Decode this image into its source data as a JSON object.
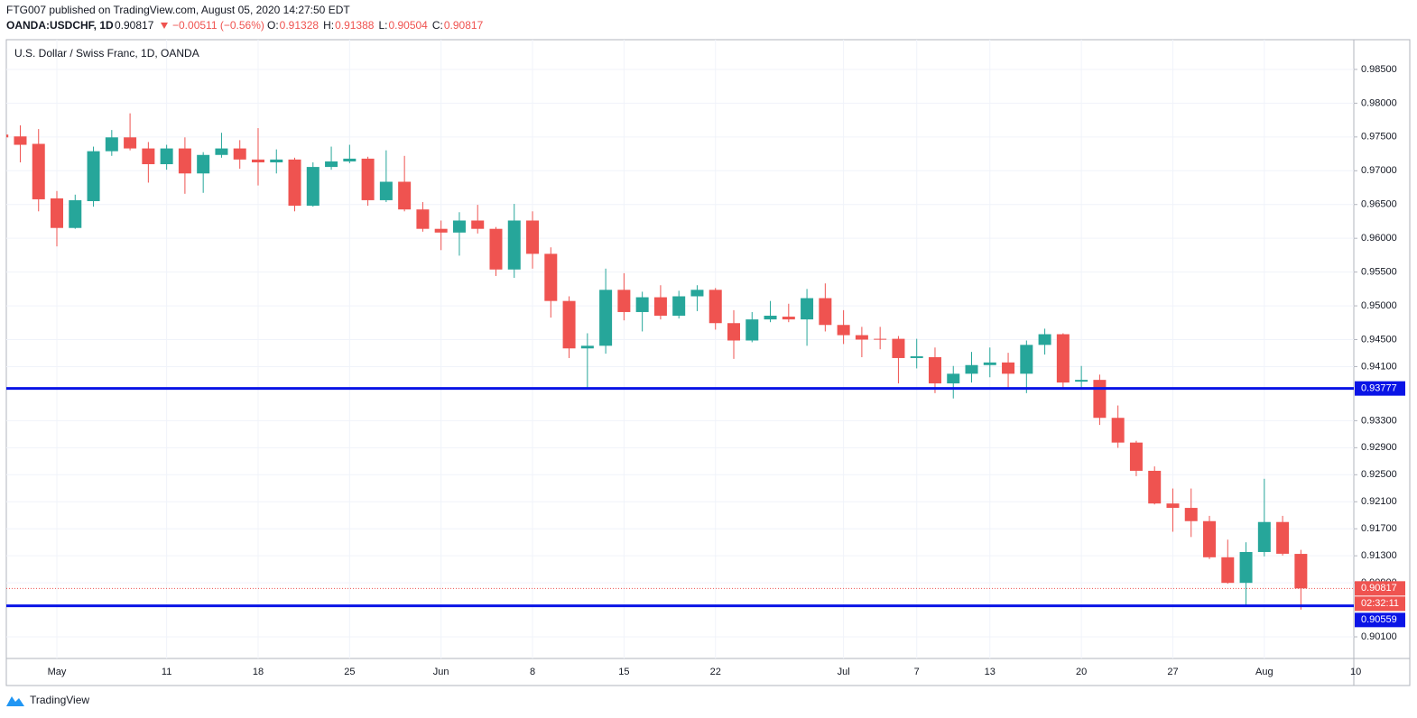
{
  "header": {
    "publisher": "FTG007 published on TradingView.com, August 05, 2020 14:27:50 EDT",
    "symbol": "OANDA:USDCHF, 1D",
    "last": "0.90817",
    "change": "−0.00511 (−0.56%)",
    "ohlc": [
      {
        "label": "O:",
        "value": "0.91328"
      },
      {
        "label": "H:",
        "value": "0.91388"
      },
      {
        "label": "L:",
        "value": "0.90504"
      },
      {
        "label": "C:",
        "value": "0.90817"
      }
    ]
  },
  "footer": {
    "brand": "TradingView"
  },
  "chart_data": {
    "type": "candlestick",
    "title": "U.S. Dollar / Swiss Franc, 1D, OANDA",
    "up_color": "#26a69a",
    "down_color": "#ef5350",
    "categories": [
      null,
      null,
      null,
      "May",
      null,
      null,
      null,
      null,
      null,
      "11",
      null,
      null,
      null,
      null,
      "18",
      null,
      null,
      null,
      null,
      "25",
      null,
      null,
      null,
      null,
      "Jun",
      null,
      null,
      null,
      null,
      "8",
      null,
      null,
      null,
      null,
      "15",
      null,
      null,
      null,
      null,
      "22",
      null,
      null,
      null,
      null,
      null,
      null,
      "Jul",
      null,
      null,
      null,
      "7",
      null,
      null,
      null,
      "13",
      null,
      null,
      null,
      null,
      "20",
      null,
      null,
      null,
      null,
      "27",
      null,
      null,
      null,
      null,
      "Aug",
      null,
      null,
      null,
      null,
      "10"
    ],
    "open": [
      0.97535,
      0.97508,
      0.97398,
      0.96591,
      0.96153,
      0.9655,
      0.97289,
      0.97494,
      0.9733,
      0.97097,
      0.9733,
      0.9696,
      0.97234,
      0.9733,
      0.97166,
      0.97124,
      0.97166,
      0.96482,
      0.97056,
      0.97138,
      0.97179,
      0.96564,
      0.96837,
      0.96427,
      0.9614,
      0.96085,
      0.96263,
      0.9614,
      0.95538,
      0.96263,
      0.9577,
      0.95072,
      0.9437,
      0.94409,
      0.95237,
      0.94908,
      0.95127,
      0.94854,
      0.95141,
      0.95237,
      0.94744,
      0.94487,
      0.94799,
      0.9484,
      0.94799,
      0.95114,
      0.94717,
      0.94566,
      0.94512,
      0.94512,
      0.94227,
      0.9424,
      0.93852,
      0.93995,
      0.94123,
      0.94162,
      0.93995,
      0.94422,
      0.9458,
      0.93878,
      0.93904,
      0.93342,
      0.92976,
      0.92558,
      0.92074,
      0.92009,
      0.91813,
      0.91278,
      0.90899,
      0.91356,
      0.918,
      0.91328,
      null,
      null,
      null
    ],
    "high": [
      0.97562,
      0.97672,
      0.97617,
      0.967,
      0.96646,
      0.97357,
      0.97603,
      0.9785,
      0.97425,
      0.97384,
      0.97494,
      0.97275,
      0.97562,
      0.97453,
      0.97631,
      0.97316,
      0.97193,
      0.97124,
      0.97357,
      0.97384,
      0.97207,
      0.97302,
      0.9722,
      0.96536,
      0.96263,
      0.96386,
      0.96495,
      0.96167,
      0.96509,
      0.96399,
      0.95866,
      0.95141,
      0.94594,
      0.95551,
      0.95483,
      0.95209,
      0.95305,
      0.95223,
      0.95305,
      0.95264,
      0.94936,
      0.94908,
      0.95072,
      0.95031,
      0.9525,
      0.95332,
      0.94936,
      0.94689,
      0.94689,
      0.94553,
      0.94512,
      0.94383,
      0.9411,
      0.94318,
      0.94383,
      0.94305,
      0.94487,
      0.94662,
      0.94594,
      0.9411,
      0.93982,
      0.93525,
      0.93002,
      0.92623,
      0.92296,
      0.92296,
      0.91891,
      0.91539,
      0.915,
      0.9244,
      0.91891,
      0.91388,
      null,
      null,
      null
    ],
    "low": [
      0.97466,
      0.97124,
      0.96399,
      0.9588,
      0.9614,
      0.96468,
      0.9722,
      0.97302,
      0.96824,
      0.97015,
      0.96659,
      0.96673,
      0.97193,
      0.97029,
      0.96782,
      0.9696,
      0.96399,
      0.96468,
      0.97015,
      0.97111,
      0.96482,
      0.96536,
      0.96399,
      0.96098,
      0.95825,
      0.95743,
      0.96071,
      0.95442,
      0.95414,
      0.95551,
      0.94826,
      0.94227,
      0.9376,
      0.94292,
      0.94785,
      0.94621,
      0.94799,
      0.94813,
      0.94922,
      0.94648,
      0.94214,
      0.94461,
      0.94758,
      0.94758,
      0.94409,
      0.94621,
      0.94435,
      0.9424,
      0.94357,
      0.93852,
      0.94074,
      0.93708,
      0.93629,
      0.93865,
      0.93943,
      0.93786,
      0.93708,
      0.94279,
      0.93786,
      0.93773,
      0.93237,
      0.92898,
      0.92479,
      0.9206,
      0.91656,
      0.91578,
      0.91252,
      0.90886,
      0.90559,
      0.91291,
      0.91304,
      0.90504,
      null,
      null,
      null
    ],
    "close": [
      0.97494,
      0.97384,
      0.96577,
      0.96153,
      0.96564,
      0.97289,
      0.97494,
      0.9733,
      0.97097,
      0.9733,
      0.9696,
      0.97234,
      0.9733,
      0.97166,
      0.97124,
      0.97166,
      0.96482,
      0.97056,
      0.97138,
      0.97179,
      0.96564,
      0.96837,
      0.96427,
      0.9614,
      0.96085,
      0.96263,
      0.9614,
      0.95538,
      0.96263,
      0.9577,
      0.95072,
      0.9437,
      0.94409,
      0.95237,
      0.94908,
      0.95127,
      0.94854,
      0.95141,
      0.95237,
      0.94744,
      0.94487,
      0.94799,
      0.94854,
      0.94799,
      0.95114,
      0.94717,
      0.94566,
      0.945,
      0.945,
      0.94227,
      0.94253,
      0.93852,
      0.93995,
      0.94123,
      0.94162,
      0.93995,
      0.94422,
      0.9458,
      0.93865,
      0.93904,
      0.93342,
      0.92976,
      0.92558,
      0.92074,
      0.92009,
      0.91813,
      0.91278,
      0.90899,
      0.91356,
      0.918,
      0.9133,
      0.90817,
      null,
      null,
      null
    ],
    "ylim": [
      0.8978,
      0.9894
    ],
    "yticks": [
      {
        "value": 0.985,
        "label": "0.98500"
      },
      {
        "value": 0.98,
        "label": "0.98000"
      },
      {
        "value": 0.975,
        "label": "0.97500"
      },
      {
        "value": 0.97,
        "label": "0.97000"
      },
      {
        "value": 0.965,
        "label": "0.96500"
      },
      {
        "value": 0.96,
        "label": "0.96000"
      },
      {
        "value": 0.955,
        "label": "0.95500"
      },
      {
        "value": 0.95,
        "label": "0.95000"
      },
      {
        "value": 0.945,
        "label": "0.94500"
      },
      {
        "value": 0.941,
        "label": "0.94100"
      },
      {
        "value": 0.933,
        "label": "0.93300"
      },
      {
        "value": 0.929,
        "label": "0.92900"
      },
      {
        "value": 0.925,
        "label": "0.92500"
      },
      {
        "value": 0.921,
        "label": "0.92100"
      },
      {
        "value": 0.917,
        "label": "0.91700"
      },
      {
        "value": 0.913,
        "label": "0.91300"
      },
      {
        "value": 0.909,
        "label": "0.90900"
      },
      {
        "value": 0.901,
        "label": "0.90100"
      }
    ],
    "grid": true,
    "hlines": [
      {
        "value": 0.93777,
        "label": "0.93777",
        "color": "#0a14e6"
      },
      {
        "value": 0.90559,
        "label": "0.90559",
        "color": "#0a14e6"
      }
    ],
    "price_label": {
      "value": 0.90817,
      "label": "0.90817",
      "countdown": "02:32:11",
      "color": "#ef5350"
    }
  }
}
